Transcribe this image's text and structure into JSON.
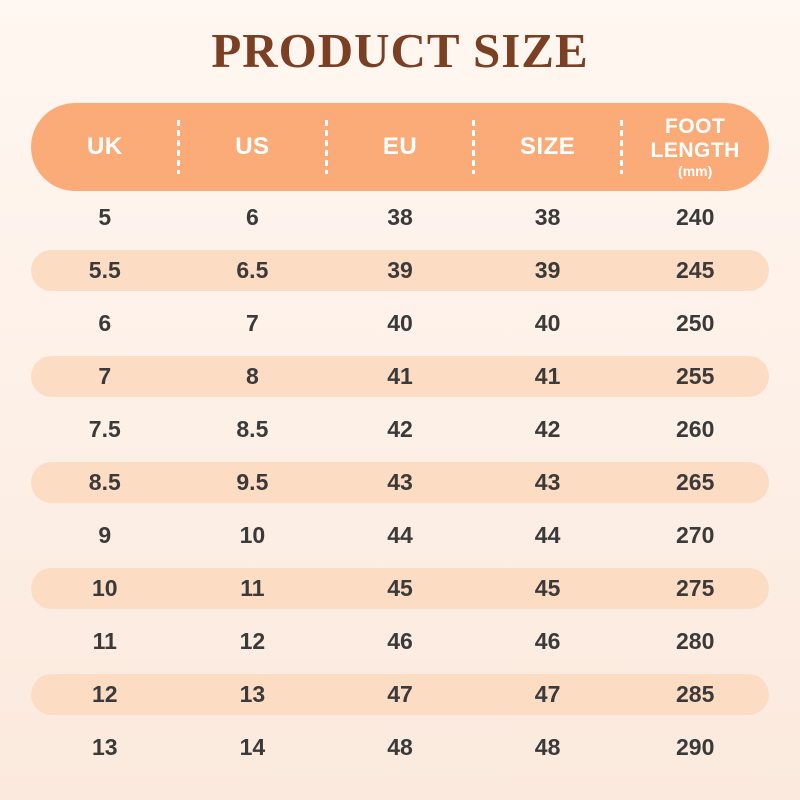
{
  "title": "PRODUCT SIZE",
  "colors": {
    "background_top": "#FFF7F1",
    "background_bottom": "#FBE9DD",
    "header_pill": "#FAAB77",
    "row_pill": "#FDDCC4",
    "title_text": "#7B4023",
    "header_text": "#FFFFFF",
    "cell_text": "#3A3A3A"
  },
  "table": {
    "columns": [
      {
        "label": "UK"
      },
      {
        "label": "US"
      },
      {
        "label": "EU"
      },
      {
        "label": "SIZE"
      },
      {
        "label": "FOOT LENGTH",
        "sublabel": "(mm)"
      }
    ],
    "rows": [
      [
        "5",
        "6",
        "38",
        "38",
        "240"
      ],
      [
        "5.5",
        "6.5",
        "39",
        "39",
        "245"
      ],
      [
        "6",
        "7",
        "40",
        "40",
        "250"
      ],
      [
        "7",
        "8",
        "41",
        "41",
        "255"
      ],
      [
        "7.5",
        "8.5",
        "42",
        "42",
        "260"
      ],
      [
        "8.5",
        "9.5",
        "43",
        "43",
        "265"
      ],
      [
        "9",
        "10",
        "44",
        "44",
        "270"
      ],
      [
        "10",
        "11",
        "45",
        "45",
        "275"
      ],
      [
        "11",
        "12",
        "46",
        "46",
        "280"
      ],
      [
        "12",
        "13",
        "47",
        "47",
        "285"
      ],
      [
        "13",
        "14",
        "48",
        "48",
        "290"
      ]
    ]
  }
}
